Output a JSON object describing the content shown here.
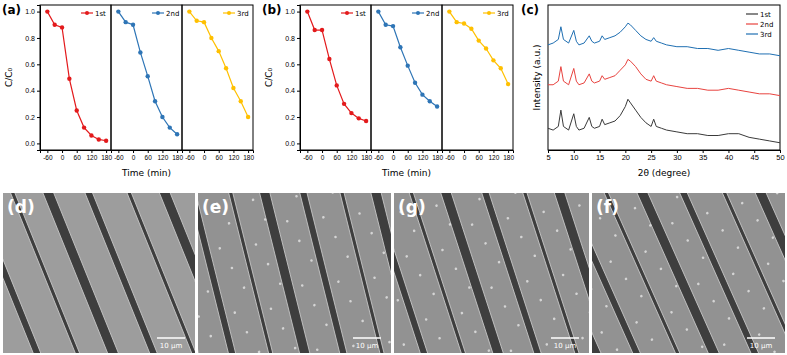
{
  "chart_data": [
    {
      "type": "small-multiples",
      "panel_label": "(a)",
      "x_label": "Time (min)",
      "y_label": "C/C₀",
      "x": [
        -60,
        -30,
        0,
        30,
        60,
        90,
        120,
        150,
        180
      ],
      "xlim": [
        -90,
        200
      ],
      "xticks": [
        -60,
        0,
        60,
        120,
        180
      ],
      "ylim": [
        -0.05,
        1.05
      ],
      "yticks": [
        {
          "value": 0,
          "label": "0.0"
        },
        {
          "value": 0.2,
          "label": "0.2"
        },
        {
          "value": 0.4,
          "label": "0.4"
        },
        {
          "value": 0.6,
          "label": "0.6"
        },
        {
          "value": 0.8,
          "label": "0.8"
        },
        {
          "value": 1.0,
          "label": "1.0"
        }
      ],
      "marker": "circle",
      "legend": "upper right",
      "series": [
        {
          "name": "1st",
          "color": "#e31a1c",
          "values": [
            1.0,
            0.9,
            0.88,
            0.49,
            0.25,
            0.12,
            0.06,
            0.03,
            0.02
          ]
        },
        {
          "name": "2nd",
          "color": "#2e75b6",
          "values": [
            1.0,
            0.92,
            0.9,
            0.69,
            0.51,
            0.32,
            0.2,
            0.12,
            0.07
          ]
        },
        {
          "name": "3rd",
          "color": "#ffc000",
          "values": [
            1.0,
            0.93,
            0.92,
            0.8,
            0.7,
            0.57,
            0.42,
            0.32,
            0.2
          ]
        }
      ]
    },
    {
      "type": "small-multiples",
      "panel_label": "(b)",
      "x_label": "Time (min)",
      "y_label": "C/C₀",
      "x": [
        -60,
        -30,
        0,
        30,
        60,
        90,
        120,
        150,
        180
      ],
      "xlim": [
        -90,
        200
      ],
      "xticks": [
        -60,
        0,
        60,
        120,
        180
      ],
      "ylim": [
        -0.05,
        1.05
      ],
      "yticks": [
        {
          "value": 0,
          "label": "0.0"
        },
        {
          "value": 0.2,
          "label": "0.2"
        },
        {
          "value": 0.4,
          "label": "0.4"
        },
        {
          "value": 0.6,
          "label": "0.6"
        },
        {
          "value": 0.8,
          "label": "0.8"
        },
        {
          "value": 1.0,
          "label": "1.0"
        }
      ],
      "marker": "circle",
      "legend": "upper right",
      "series": [
        {
          "name": "1st",
          "color": "#e31a1c",
          "values": [
            1.0,
            0.86,
            0.86,
            0.64,
            0.44,
            0.3,
            0.23,
            0.19,
            0.17
          ]
        },
        {
          "name": "2nd",
          "color": "#2e75b6",
          "values": [
            1.0,
            0.9,
            0.89,
            0.73,
            0.59,
            0.46,
            0.37,
            0.32,
            0.28
          ]
        },
        {
          "name": "3rd",
          "color": "#ffc000",
          "values": [
            1.0,
            0.92,
            0.91,
            0.87,
            0.78,
            0.72,
            0.63,
            0.57,
            0.45
          ]
        }
      ]
    },
    {
      "type": "line",
      "panel_label": "(c)",
      "x_label": "2θ (degree)",
      "y_label": "Intensity (a.u.)",
      "x": [
        5,
        6,
        7,
        7.5,
        8,
        9,
        10,
        10.5,
        11,
        12,
        13,
        13.5,
        14,
        15,
        15.5,
        16,
        17,
        18,
        19,
        20,
        20.5,
        21,
        22,
        23,
        24,
        25,
        25.5,
        26,
        27,
        28,
        30,
        32,
        34,
        36,
        38,
        40,
        42,
        44,
        46,
        48,
        50
      ],
      "xlim": [
        5,
        50
      ],
      "xticks": [
        5,
        10,
        15,
        20,
        25,
        30,
        35,
        40,
        45,
        50
      ],
      "ylim": [
        0,
        80
      ],
      "tick_labels": "x",
      "legend": "upper right",
      "series": [
        {
          "name": "1st",
          "color": "#3a3a3a",
          "values": [
            12,
            11,
            13,
            22,
            13,
            11,
            20,
            13,
            11,
            12,
            18,
            13,
            12,
            13,
            17,
            14,
            15,
            16,
            19,
            24,
            28,
            26,
            22,
            18,
            15,
            13,
            17,
            13,
            12,
            11,
            10,
            9,
            9,
            8,
            8,
            9,
            9,
            7,
            6,
            5,
            4
          ]
        },
        {
          "name": "2nd",
          "color": "#e8433f",
          "values": [
            36,
            36,
            38,
            46,
            38,
            36,
            45,
            38,
            36,
            37,
            42,
            38,
            37,
            38,
            41,
            39,
            40,
            41,
            44,
            47,
            50,
            49,
            46,
            42,
            39,
            38,
            41,
            38,
            37,
            36,
            35,
            34,
            34,
            33,
            33,
            34,
            33,
            32,
            31,
            31,
            30
          ]
        },
        {
          "name": "3rd",
          "color": "#1f6fb2",
          "values": [
            58,
            59,
            61,
            68,
            61,
            59,
            66,
            60,
            58,
            59,
            63,
            60,
            59,
            60,
            63,
            61,
            62,
            63,
            65,
            68,
            70,
            69,
            66,
            63,
            61,
            60,
            62,
            60,
            59,
            58,
            57,
            57,
            56,
            56,
            55,
            56,
            55,
            54,
            53,
            53,
            52
          ]
        }
      ]
    }
  ],
  "images": [
    {
      "label": "(d)",
      "scale_bar": "10 μm"
    },
    {
      "label": "(e)",
      "scale_bar": "10 μm"
    },
    {
      "label": "(g)",
      "scale_bar": "10 μm"
    },
    {
      "label": "(f)",
      "scale_bar": "10 μm"
    }
  ]
}
